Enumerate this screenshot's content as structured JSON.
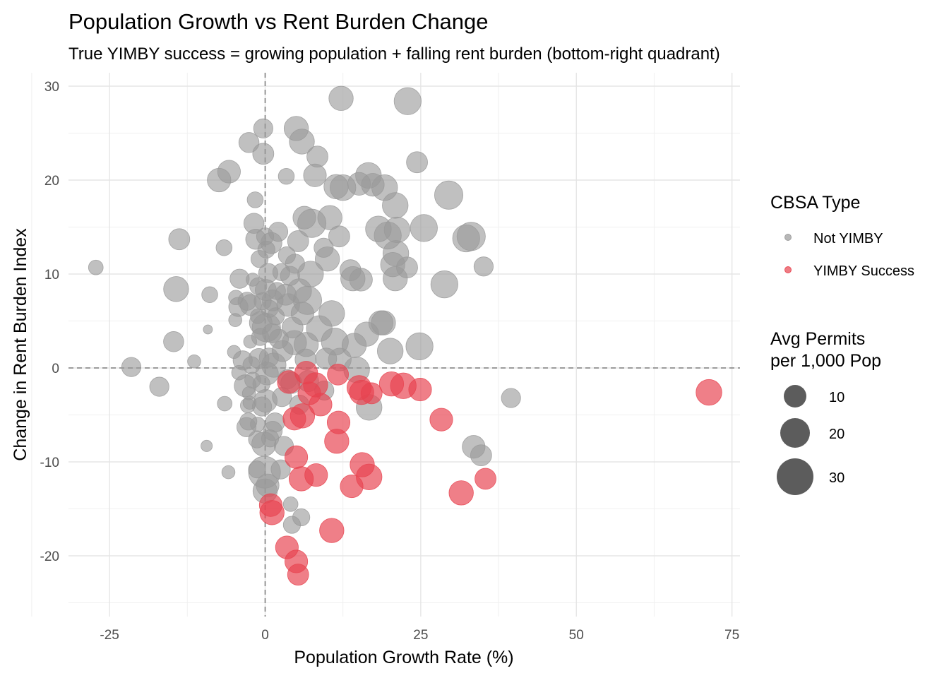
{
  "chart_data": {
    "type": "scatter",
    "title": "Population Growth vs Rent Burden Change",
    "subtitle": "True YIMBY success = growing population + falling rent burden (bottom-right quadrant)",
    "xlabel": "Population Growth Rate (%)",
    "ylabel": "Change in Rent Burden Index",
    "xlim": [
      -30,
      76
    ],
    "ylim": [
      -26,
      31
    ],
    "x_ticks": [
      -25,
      0,
      25,
      50,
      75
    ],
    "y_ticks": [
      -20,
      -10,
      0,
      10,
      20,
      30
    ],
    "reference_lines": {
      "x": 0,
      "y": 0,
      "style": "dashed"
    },
    "grid": true,
    "legend_placement": "right",
    "color_legend": {
      "title": "CBSA Type",
      "entries": [
        {
          "label": "Not YIMBY",
          "color": "#999999"
        },
        {
          "label": "YIMBY Success",
          "color": "#e8434f"
        }
      ]
    },
    "size_legend": {
      "title_line1": "Avg Permits",
      "title_line2": "per 1,000 Pop",
      "entries": [
        {
          "label": "10",
          "value": 10
        },
        {
          "label": "20",
          "value": 20
        },
        {
          "label": "30",
          "value": 30
        }
      ]
    },
    "series": [
      {
        "name": "Not YIMBY",
        "color": "#999999",
        "points": [
          [
            -27.2,
            10.7,
            4
          ],
          [
            -21.5,
            0.1,
            8
          ],
          [
            -17,
            -2,
            8
          ],
          [
            -14.7,
            2.8,
            9
          ],
          [
            -14.3,
            8.4,
            15
          ],
          [
            -13.8,
            13.7,
            10
          ],
          [
            -11.4,
            0.7,
            3
          ],
          [
            -9.4,
            -8.3,
            2
          ],
          [
            -9.2,
            4.1,
            1
          ],
          [
            -8.9,
            7.8,
            5
          ],
          [
            -7.4,
            20,
            13
          ],
          [
            -6.6,
            12.8,
            5
          ],
          [
            -6.5,
            -3.8,
            4
          ],
          [
            -5.9,
            -11.1,
            3
          ],
          [
            -5.8,
            20.9,
            12
          ],
          [
            -5,
            1.7,
            3
          ],
          [
            -4.8,
            5.1,
            3
          ],
          [
            -4.7,
            7.5,
            4
          ],
          [
            -4.3,
            6.5,
            8
          ],
          [
            -4.2,
            -0.5,
            4
          ],
          [
            -4.1,
            9.5,
            8
          ],
          [
            -3.6,
            0.8,
            8
          ],
          [
            -3.2,
            -1.9,
            11
          ],
          [
            -3,
            -6.3,
            8
          ],
          [
            -2.9,
            7.1,
            7
          ],
          [
            -2.8,
            -4,
            4
          ],
          [
            -2.7,
            -5.7,
            6
          ],
          [
            -2.6,
            -2.7,
            3
          ],
          [
            -2.6,
            24,
            9
          ],
          [
            -2.5,
            -3.7,
            3
          ],
          [
            -2.4,
            2.8,
            3
          ],
          [
            -2.3,
            6.7,
            10
          ],
          [
            -2.2,
            0.3,
            6
          ],
          [
            -2,
            9.4,
            3
          ],
          [
            -2,
            -1.3,
            5
          ],
          [
            -1.8,
            15.4,
            9
          ],
          [
            -1.6,
            17.9,
            5
          ],
          [
            -1.5,
            13.7,
            9
          ],
          [
            -1.3,
            -10.8,
            6
          ],
          [
            -1.3,
            -7.6,
            6
          ],
          [
            -1.2,
            -6,
            4
          ],
          [
            -1.2,
            5.5,
            4
          ],
          [
            -1.1,
            8.7,
            6
          ],
          [
            -1,
            1,
            9
          ],
          [
            -0.9,
            11.6,
            6
          ],
          [
            -0.8,
            3.3,
            6
          ],
          [
            -0.7,
            4.8,
            12
          ],
          [
            -0.6,
            -1.7,
            6
          ],
          [
            -0.5,
            -4.1,
            8
          ],
          [
            -0.4,
            7.1,
            6
          ],
          [
            -0.3,
            22.8,
            10
          ],
          [
            -0.3,
            25.5,
            8
          ],
          [
            -0.2,
            -8.1,
            14
          ],
          [
            -0.1,
            -11.1,
            26
          ],
          [
            0,
            -13.1,
            14
          ],
          [
            0,
            14,
            6
          ],
          [
            0.1,
            -3.5,
            12
          ],
          [
            0.1,
            8.3,
            10
          ],
          [
            0.2,
            12.6,
            6
          ],
          [
            0.2,
            4.3,
            20
          ],
          [
            0.3,
            -0.6,
            12
          ],
          [
            0.4,
            -12.5,
            12
          ],
          [
            0.5,
            10.1,
            8
          ],
          [
            0.6,
            1.1,
            8
          ],
          [
            0.7,
            6.3,
            6
          ],
          [
            0.8,
            -7.5,
            6
          ],
          [
            1,
            13.3,
            10
          ],
          [
            1.1,
            3.7,
            8
          ],
          [
            1.2,
            -6.7,
            8
          ],
          [
            1.2,
            7.2,
            10
          ],
          [
            1.4,
            0.3,
            14
          ],
          [
            1.6,
            -5.8,
            8
          ],
          [
            1.7,
            5.5,
            6
          ],
          [
            1.9,
            8.2,
            6
          ],
          [
            2.1,
            14.5,
            8
          ],
          [
            2.2,
            3.1,
            8
          ],
          [
            2.5,
            -10.8,
            8
          ],
          [
            2.6,
            10.2,
            6
          ],
          [
            2.7,
            -3.1,
            8
          ],
          [
            2.8,
            1.8,
            10
          ],
          [
            3,
            -8.3,
            8
          ],
          [
            3.3,
            7.8,
            10
          ],
          [
            3.4,
            20.4,
            5
          ],
          [
            3.5,
            12,
            6
          ],
          [
            3.6,
            -1.2,
            8
          ],
          [
            3.7,
            6.7,
            12
          ],
          [
            4,
            9.8,
            8
          ],
          [
            4.1,
            -14.5,
            4
          ],
          [
            4.2,
            -1.6,
            10
          ],
          [
            4.3,
            -16.7,
            6
          ],
          [
            4.4,
            4.3,
            10
          ],
          [
            4.7,
            2.7,
            14
          ],
          [
            4.8,
            11.1,
            8
          ],
          [
            5,
            25.5,
            14
          ],
          [
            5.3,
            13.5,
            10
          ],
          [
            5.5,
            -3.9,
            8
          ],
          [
            5.5,
            8.2,
            14
          ],
          [
            5.8,
            -15.9,
            6
          ],
          [
            5.9,
            24.1,
            15
          ],
          [
            6,
            5.8,
            12
          ],
          [
            6.3,
            16,
            12
          ],
          [
            6.5,
            0.9,
            10
          ],
          [
            6.6,
            2.5,
            14
          ],
          [
            6.8,
            7.2,
            20
          ],
          [
            6.9,
            -1.4,
            10
          ],
          [
            7.3,
            10,
            16
          ],
          [
            7.5,
            15.4,
            20
          ],
          [
            8,
            20.5,
            12
          ],
          [
            8.4,
            22.5,
            10
          ],
          [
            8.7,
            4.2,
            16
          ],
          [
            9.4,
            12.8,
            8
          ],
          [
            9.5,
            -2.4,
            8
          ],
          [
            9.8,
            1,
            10
          ],
          [
            10,
            11.6,
            14
          ],
          [
            10.4,
            16,
            14
          ],
          [
            10.7,
            5.8,
            16
          ],
          [
            11.2,
            2.8,
            18
          ],
          [
            11.4,
            19.3,
            14
          ],
          [
            11.9,
            14,
            10
          ],
          [
            12,
            0.9,
            12
          ],
          [
            12.2,
            28.7,
            14
          ],
          [
            12.5,
            19.2,
            16
          ],
          [
            13.7,
            10.4,
            10
          ],
          [
            14.1,
            9.5,
            14
          ],
          [
            14.3,
            2.4,
            14
          ],
          [
            14.7,
            -0.2,
            16
          ],
          [
            15.1,
            19.6,
            12
          ],
          [
            15.4,
            9.4,
            12
          ],
          [
            16.3,
            3.6,
            14
          ],
          [
            16.6,
            20.5,
            16
          ],
          [
            16.7,
            -4.2,
            16
          ],
          [
            17.3,
            19.5,
            12
          ],
          [
            18.2,
            14.8,
            16
          ],
          [
            18.6,
            4.8,
            14
          ],
          [
            19,
            4.8,
            14
          ],
          [
            19.2,
            19.2,
            16
          ],
          [
            19.7,
            14.1,
            18
          ],
          [
            20.1,
            1.8,
            16
          ],
          [
            20.5,
            11,
            14
          ],
          [
            20.9,
            9.5,
            14
          ],
          [
            20.9,
            17.3,
            16
          ],
          [
            21,
            12.2,
            16
          ],
          [
            21.2,
            14.7,
            16
          ],
          [
            22.8,
            10.7,
            10
          ],
          [
            22.9,
            28.4,
            18
          ],
          [
            24.4,
            21.9,
            10
          ],
          [
            24.8,
            2.3,
            18
          ],
          [
            25.5,
            14.9,
            18
          ],
          [
            28.8,
            8.9,
            18
          ],
          [
            29.5,
            18.4,
            20
          ],
          [
            32.3,
            13.8,
            18
          ],
          [
            33.1,
            14,
            20
          ],
          [
            33.5,
            -8.4,
            12
          ],
          [
            34.7,
            -9.3,
            10
          ],
          [
            35.1,
            10.8,
            8
          ],
          [
            39.5,
            -3.2,
            8
          ]
        ]
      },
      {
        "name": "YIMBY Success",
        "color": "#e8434f",
        "points": [
          [
            0.9,
            -14.6,
            12
          ],
          [
            1.1,
            -15.4,
            14
          ],
          [
            3.5,
            -19.1,
            12
          ],
          [
            3.8,
            -1.5,
            12
          ],
          [
            4.7,
            -5.4,
            12
          ],
          [
            5,
            -20.6,
            12
          ],
          [
            5,
            -9.5,
            12
          ],
          [
            5.3,
            -22,
            10
          ],
          [
            5.8,
            -11.8,
            14
          ],
          [
            6,
            -5.1,
            14
          ],
          [
            6.6,
            -0.5,
            12
          ],
          [
            7.1,
            -2.7,
            12
          ],
          [
            8.1,
            -1.8,
            14
          ],
          [
            8.2,
            -11.4,
            12
          ],
          [
            8.9,
            -3.9,
            12
          ],
          [
            10.7,
            -17.3,
            14
          ],
          [
            11.5,
            -7.8,
            14
          ],
          [
            11.8,
            -5.8,
            12
          ],
          [
            11.7,
            -0.7,
            10
          ],
          [
            13.9,
            -12.6,
            12
          ],
          [
            15.1,
            -2.1,
            14
          ],
          [
            15.5,
            -2.6,
            14
          ],
          [
            15.6,
            -10.3,
            14
          ],
          [
            16.7,
            -11.6,
            16
          ],
          [
            17.1,
            -2.7,
            10
          ],
          [
            20.3,
            -1.7,
            14
          ],
          [
            22.2,
            -1.9,
            16
          ],
          [
            24.9,
            -2.3,
            12
          ],
          [
            28.3,
            -5.5,
            12
          ],
          [
            31.5,
            -13.3,
            14
          ],
          [
            35.4,
            -11.8,
            10
          ],
          [
            71.3,
            -2.6,
            16
          ]
        ]
      }
    ]
  }
}
